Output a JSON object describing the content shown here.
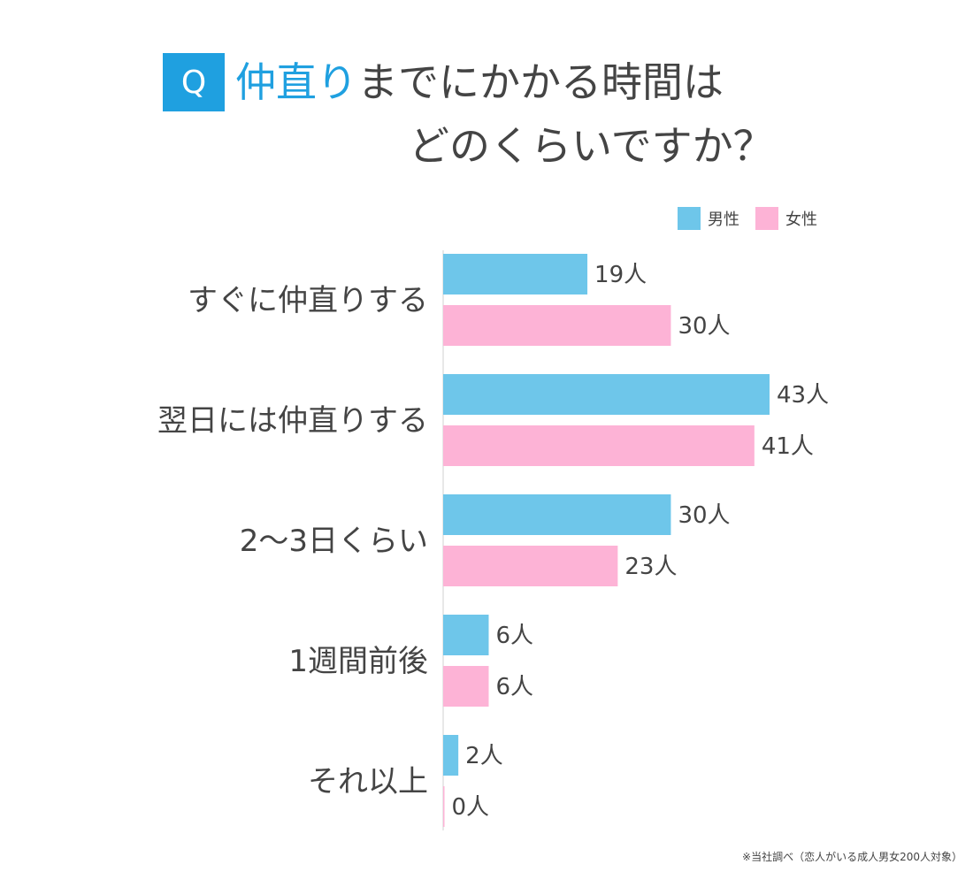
{
  "title": {
    "q_mark": "Q",
    "accent": "仲直り",
    "rest": "までにかかる時間は",
    "line2": "どのくらいですか？"
  },
  "legend": {
    "male": "男性",
    "female": "女性"
  },
  "colors": {
    "male": "#6ec6ea",
    "female": "#fdb3d6",
    "accent": "#1fa0e0",
    "text": "#444444"
  },
  "footnote": "※当社調べ（恋人がいる成人男女200人対象）",
  "chart_data": {
    "type": "bar",
    "orientation": "horizontal",
    "unit": "人",
    "categories": [
      "すぐに仲直りする",
      "翌日には仲直りする",
      "2〜3日くらい",
      "1週間前後",
      "それ以上"
    ],
    "series": [
      {
        "name": "男性",
        "values": [
          19,
          43,
          30,
          6,
          2
        ]
      },
      {
        "name": "女性",
        "values": [
          30,
          41,
          23,
          6,
          0
        ]
      }
    ],
    "value_labels": [
      [
        "19人",
        "43人",
        "30人",
        "6人",
        "2人"
      ],
      [
        "30人",
        "41人",
        "23人",
        "6人",
        "0人"
      ]
    ],
    "xlim": [
      0,
      43
    ],
    "grid": false,
    "legend_position": "top-right"
  }
}
